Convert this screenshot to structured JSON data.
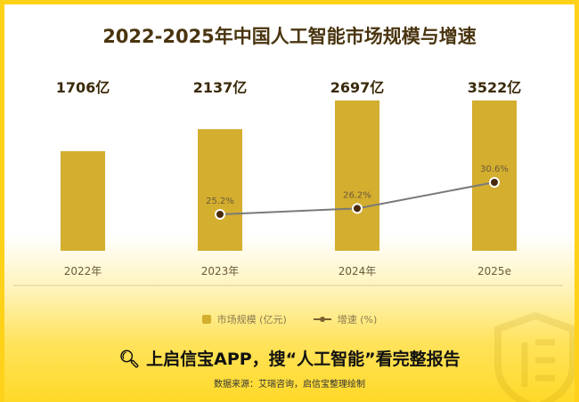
{
  "chart_data": {
    "type": "bar",
    "title": "2022-2025年中国人工智能市场规模与增速",
    "categories": [
      "2022年",
      "2023年",
      "2024年",
      "2025e"
    ],
    "series": [
      {
        "name": "市场规模 (亿元)",
        "type": "bar",
        "values": [
          1706,
          2137,
          2697,
          3522
        ],
        "labels": [
          "1706亿",
          "2137亿",
          "2697亿",
          "3522亿"
        ]
      },
      {
        "name": "增速 (%)",
        "type": "line",
        "values": [
          null,
          25.2,
          26.2,
          30.6
        ],
        "labels": [
          "",
          "25.2%",
          "26.2%",
          "30.6%"
        ]
      }
    ],
    "legend": "bottom-center",
    "grid": false
  },
  "colors": {
    "bar": "#d4ae2e",
    "line": "#7a7a7a",
    "border": "#FFD21A"
  },
  "cta": "上启信宝APP，搜“人工智能”看完整报告",
  "source": "数据来源：艾瑞咨询，启信宝整理绘制"
}
